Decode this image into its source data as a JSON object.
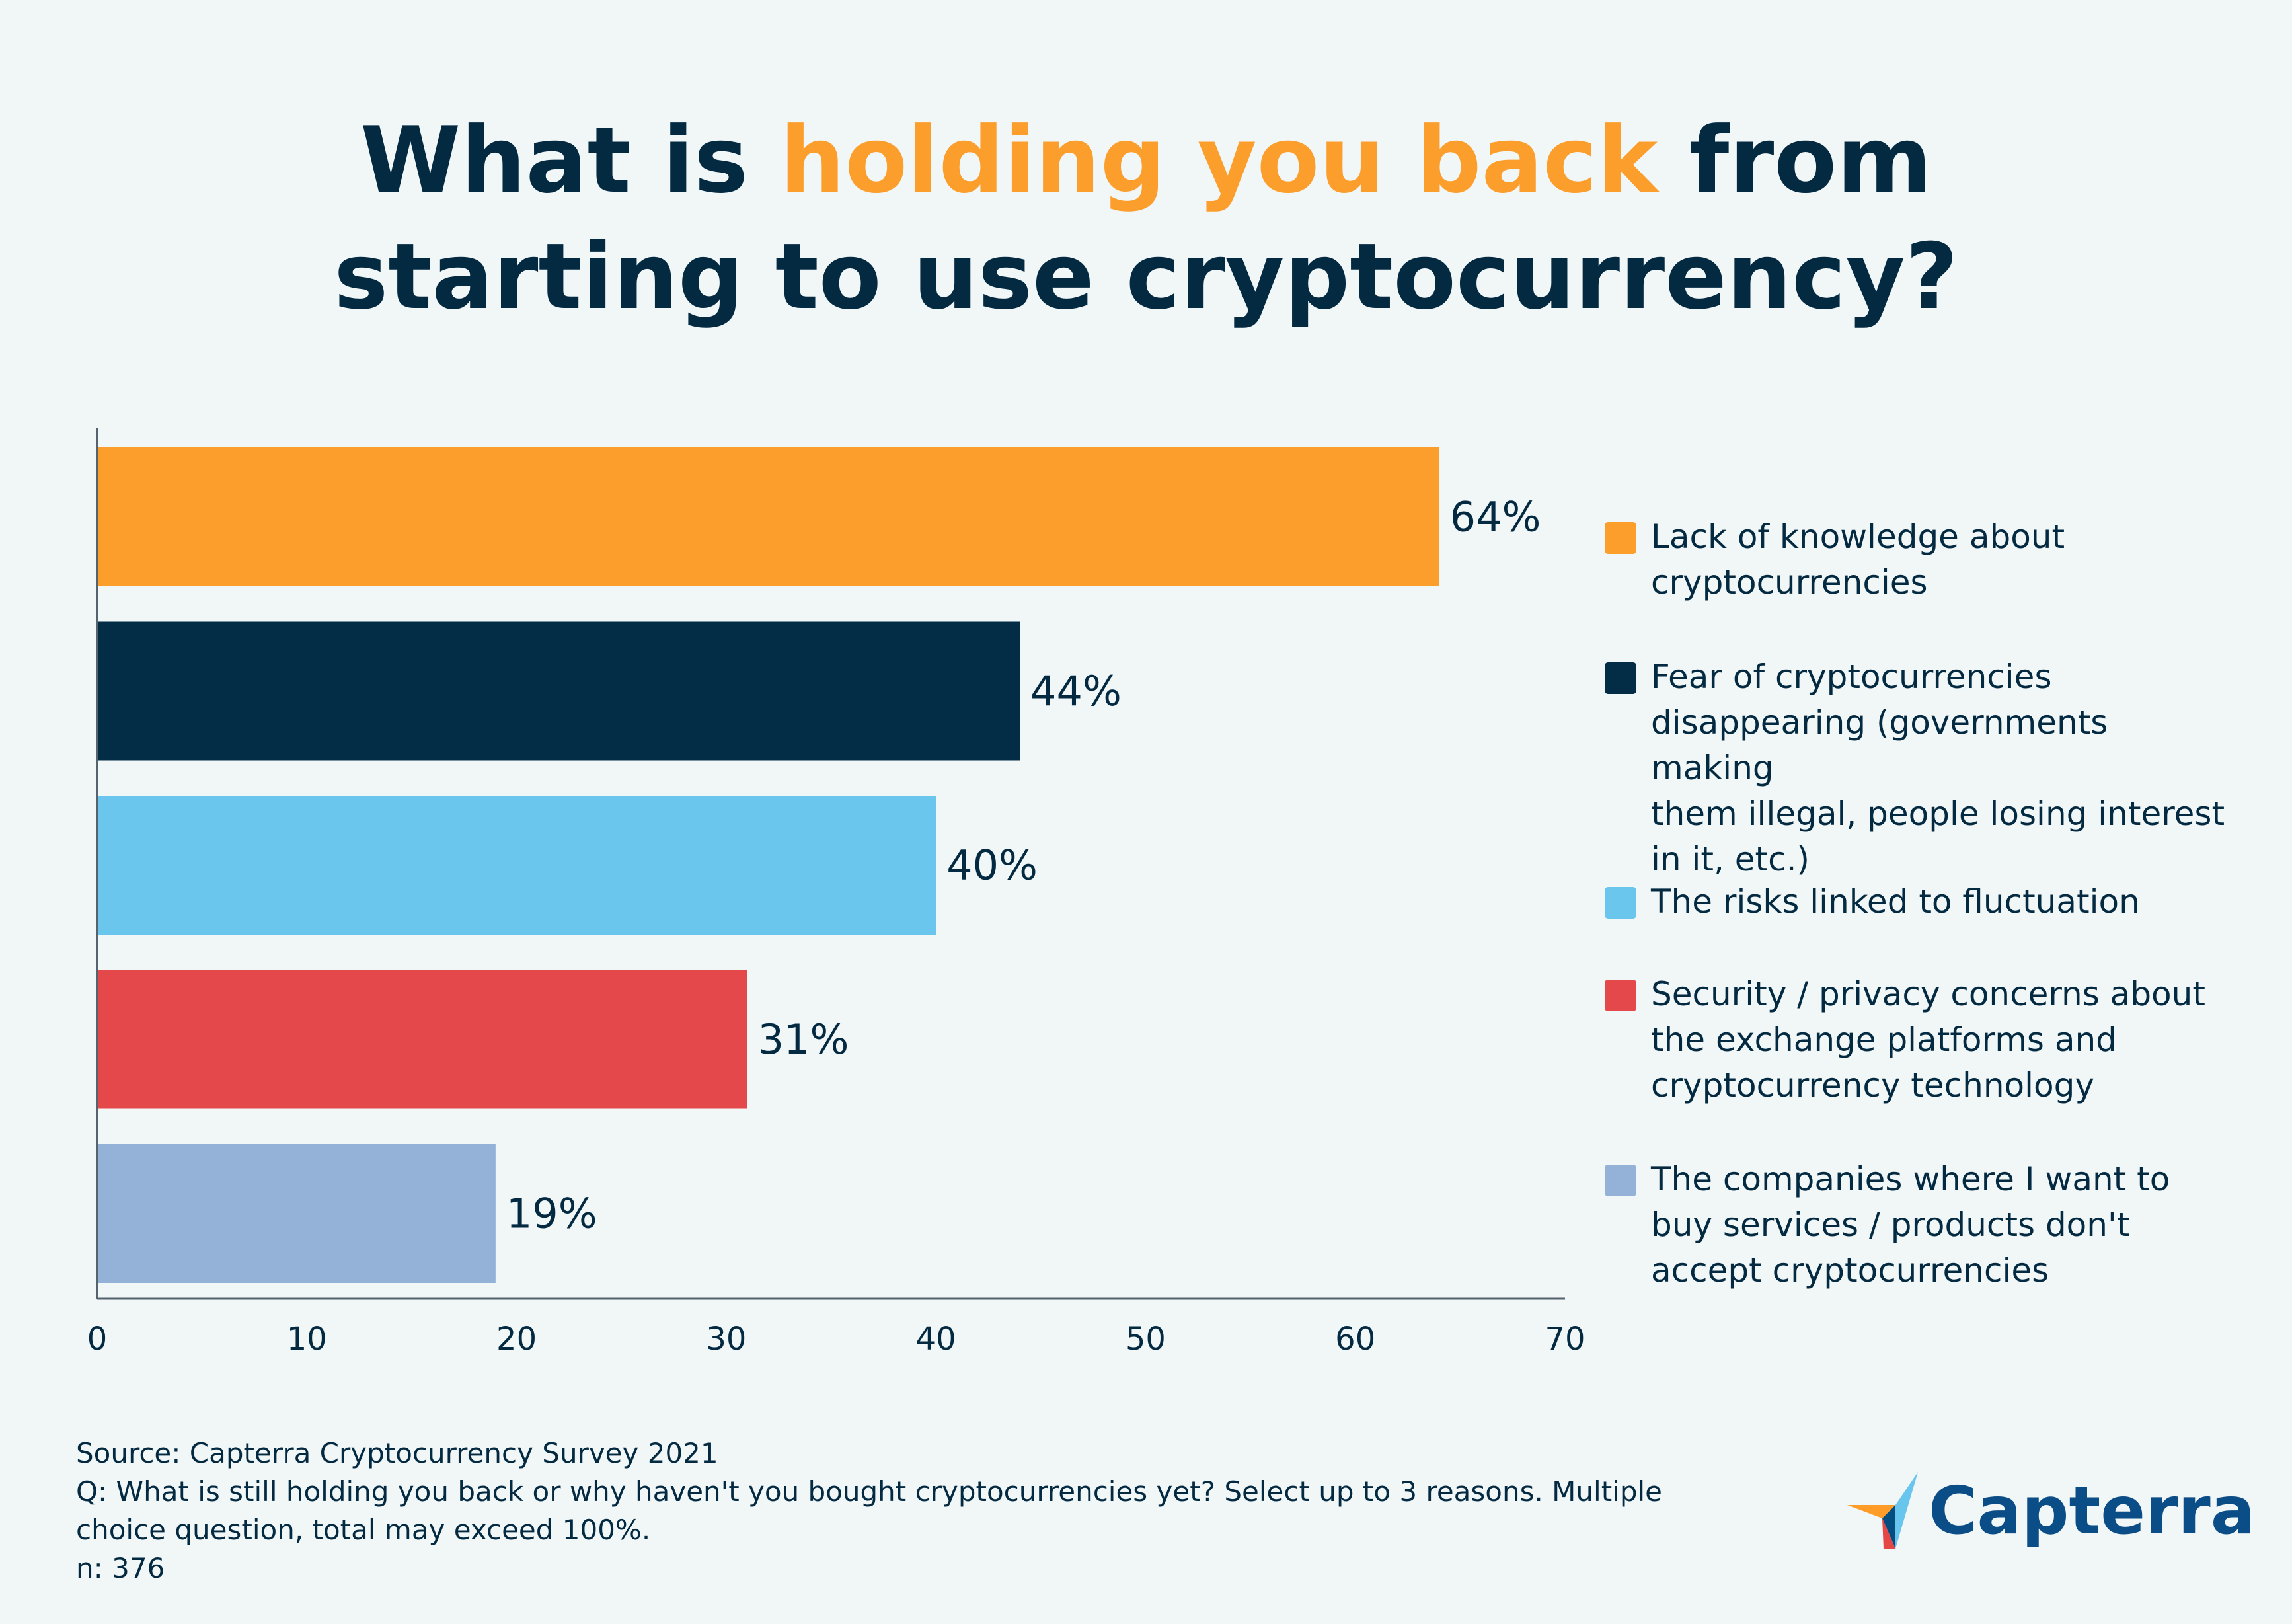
{
  "title": {
    "part1": "What is ",
    "highlight": "holding you back",
    "part2": " from",
    "line2": "starting to use cryptocurrency?"
  },
  "colors": {
    "background": "#f1f6f7",
    "text": "#042a42",
    "highlight": "#fb9e2c"
  },
  "chart_data": {
    "type": "bar",
    "orientation": "horizontal",
    "categories": [
      "Lack of knowledge about\ncryptocurrencies",
      "Fear of cryptocurrencies\ndisappearing (governments making\nthem illegal, people losing interest\nin it, etc.)",
      "The risks linked to fluctuation",
      "Security / privacy concerns about\nthe exchange platforms and\ncryptocurrency technology",
      "The companies where I want to\nbuy services / products don't\naccept cryptocurrencies"
    ],
    "values": [
      64,
      44,
      40,
      31,
      19
    ],
    "value_labels": [
      "64%",
      "44%",
      "40%",
      "31%",
      "19%"
    ],
    "colors": [
      "#fb9e2c",
      "#032c47",
      "#6bc6ed",
      "#e5484a",
      "#94b2d8"
    ],
    "xlim": [
      0,
      70
    ],
    "x_ticks": [
      "0",
      "10",
      "20",
      "30",
      "40",
      "50",
      "60",
      "70"
    ],
    "grid": false,
    "legend_position": "right"
  },
  "footer": {
    "source": "Source: Capterra Cryptocurrency Survey 2021",
    "question_line1": "Q: What is still holding you back or why haven't you bought cryptocurrencies yet? Select up to 3 reasons. Multiple",
    "question_line2": "choice question, total may exceed 100%.",
    "n": "n: 376"
  },
  "logo": {
    "text": "Capterra",
    "icon": "capterra-arrow-icon"
  }
}
